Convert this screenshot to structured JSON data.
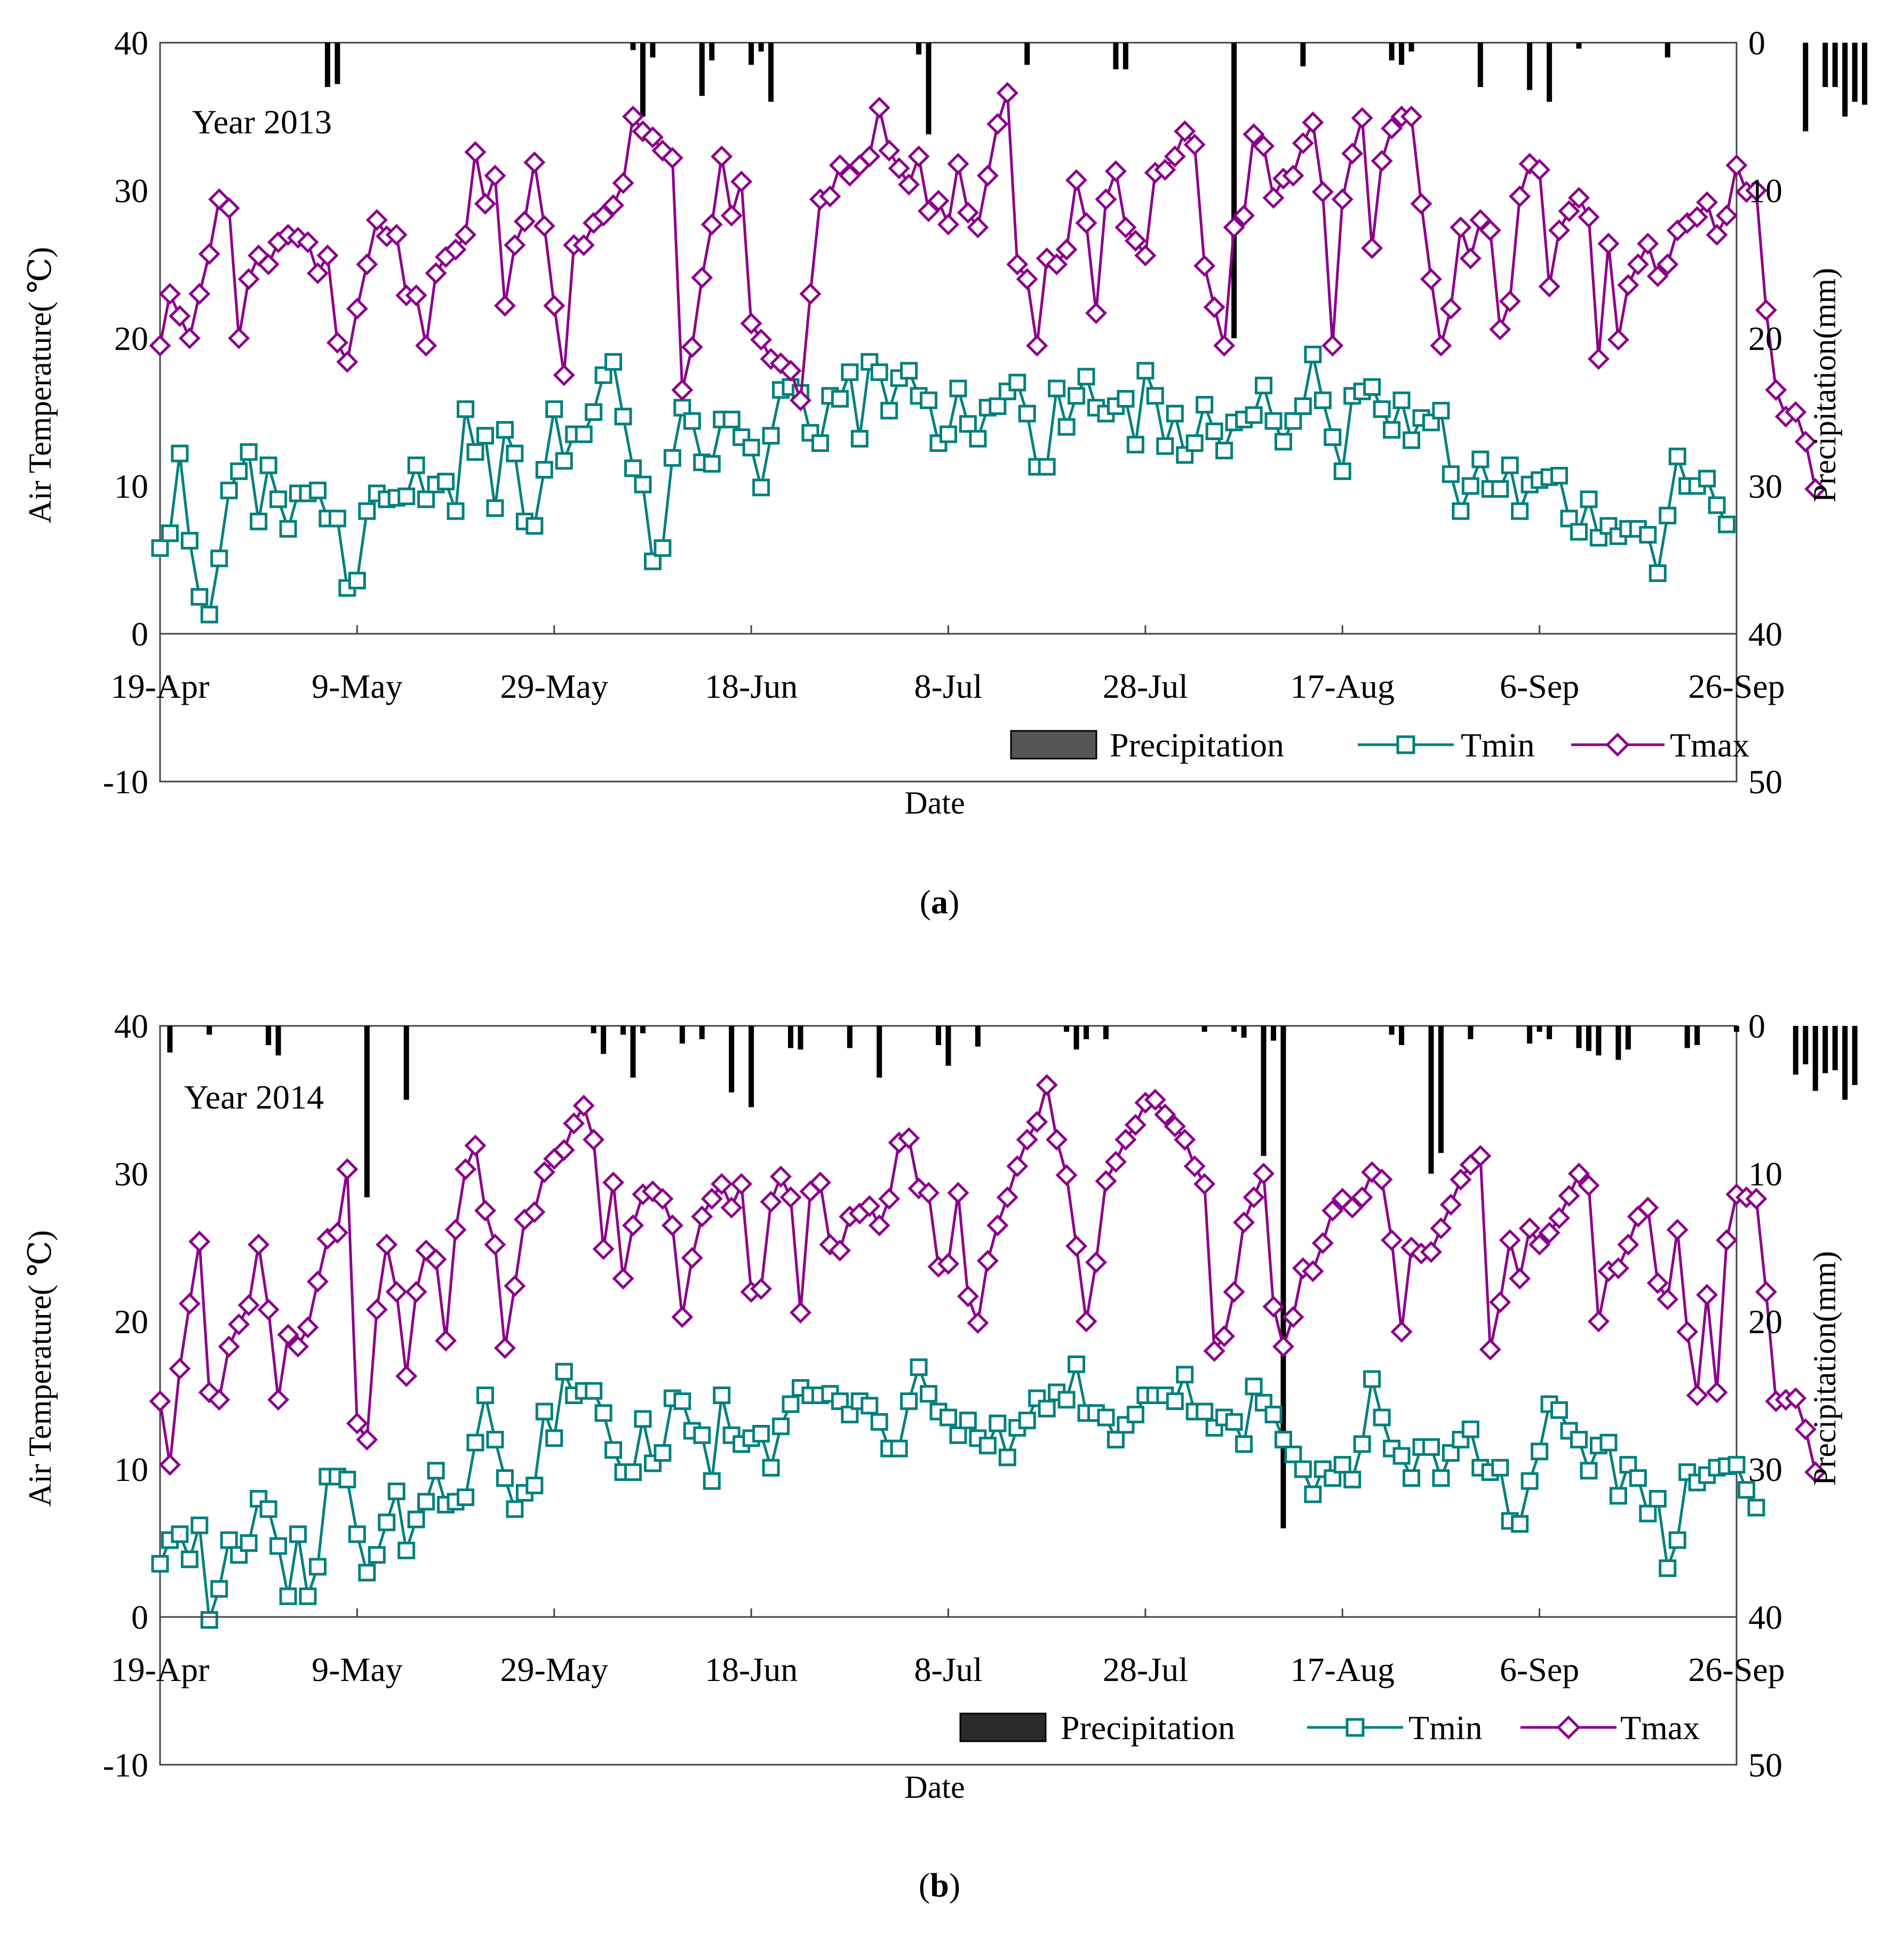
{
  "colors": {
    "tmin": "#00807c",
    "tmax": "#8b008b",
    "precip_a": "#000000",
    "precip_legend_a": "#555555",
    "precip_b": "#000000",
    "precip_legend_b": "#2a2a2a"
  },
  "chart_data": [
    {
      "type": "line",
      "panel": "(a)",
      "panel_letter": "a",
      "annotation": "Year 2013",
      "xlabel": "Date",
      "ylabel_left": "Air Temperature( ℃)",
      "ylabel_right": "Precipitation(mm)",
      "left_ylim": [
        -10,
        40
      ],
      "left_ticks": [
        "40",
        "30",
        "20",
        "10",
        "0",
        "-10"
      ],
      "right_ylim_inverted": [
        0,
        50
      ],
      "right_ticks": [
        "0",
        "10",
        "20",
        "30",
        "40",
        "50"
      ],
      "x_tick_labels": [
        "19-Apr",
        "9-May",
        "29-May",
        "18-Jun",
        "8-Jul",
        "28-Jul",
        "17-Aug",
        "6-Sep",
        "26-Sep"
      ],
      "x_tick_days": [
        0,
        20,
        40,
        60,
        80,
        100,
        120,
        140,
        160
      ],
      "legend": {
        "precipitation": "Precipitation",
        "tmin": "Tmin",
        "tmax": "Tmax"
      },
      "series": [
        {
          "name": "Tmin",
          "marker": "square",
          "values": [
            5.8,
            6.8,
            12.2,
            6.3,
            2.5,
            1.3,
            5.1,
            9.7,
            11.0,
            12.3,
            7.6,
            11.4,
            9.1,
            7.1,
            9.5,
            9.5,
            9.7,
            7.8,
            7.8,
            3.1,
            3.6,
            8.3,
            9.5,
            9.1,
            9.2,
            9.3,
            11.4,
            9.1,
            10.1,
            10.3,
            8.3,
            15.2,
            12.3,
            13.4,
            8.5,
            13.8,
            12.2,
            7.6,
            7.3,
            11.1,
            15.2,
            11.7,
            13.5,
            13.5,
            15.0,
            17.5,
            18.4,
            14.7,
            11.2,
            10.1,
            4.9,
            5.8,
            11.9,
            15.3,
            14.4,
            11.6,
            11.5,
            14.5,
            14.5,
            13.3,
            12.6,
            9.9,
            13.4,
            16.5,
            16.7,
            16.3,
            13.6,
            12.9,
            16.1,
            15.9,
            17.7,
            13.2,
            18.4,
            17.7,
            15.1,
            17.3,
            17.8,
            16.1,
            15.8,
            12.9,
            13.5,
            16.6,
            14.2,
            13.2,
            15.3,
            15.4,
            16.4,
            17.0,
            14.9,
            11.3,
            11.3,
            16.6,
            14.0,
            16.1,
            17.4,
            15.3,
            14.9,
            15.4,
            15.9,
            12.8,
            17.8,
            16.1,
            12.7,
            14.9,
            12.1,
            12.9,
            15.5,
            13.7,
            12.4,
            14.3,
            14.5,
            14.8,
            16.8,
            14.4,
            13.0,
            14.4,
            15.4,
            18.9,
            15.8,
            13.3,
            11.0,
            16.1,
            16.4,
            16.7,
            15.2,
            13.8,
            15.8,
            13.1,
            14.6,
            14.3,
            15.1,
            10.8,
            8.3,
            10.0,
            11.8,
            9.8,
            9.8,
            11.4,
            8.3,
            10.1,
            10.4,
            10.6,
            10.7,
            7.8,
            6.9,
            9.1,
            6.5,
            7.3,
            6.6,
            7.1,
            7.1,
            6.7,
            4.1,
            8.0,
            12.0,
            10.0,
            10.0,
            10.5,
            8.7,
            7.4
          ]
        },
        {
          "name": "Tmax",
          "marker": "diamond",
          "values": [
            19.5,
            23.0,
            21.5,
            20.0,
            23.0,
            25.7,
            29.4,
            28.8,
            20.0,
            24.0,
            25.6,
            25.0,
            26.5,
            27.0,
            26.8,
            26.5,
            24.4,
            25.6,
            19.7,
            18.4,
            22.0,
            25.0,
            28.0,
            26.9,
            27.0,
            22.9,
            22.9,
            19.5,
            24.4,
            25.5,
            26.0,
            27.0,
            32.6,
            29.1,
            31.0,
            22.2,
            26.3,
            27.9,
            31.9,
            27.6,
            22.2,
            17.5,
            26.3,
            26.3,
            27.8,
            28.3,
            29.0,
            30.5,
            35.0,
            34.0,
            33.6,
            32.7,
            32.2,
            16.5,
            19.4,
            24.1,
            27.7,
            32.3,
            28.3,
            30.6,
            21.0,
            19.9,
            18.6,
            18.3,
            17.8,
            15.8,
            23.0,
            29.4,
            29.6,
            31.7,
            31.0,
            31.7,
            32.3,
            35.6,
            32.7,
            31.5,
            30.4,
            32.3,
            28.6,
            29.3,
            27.7,
            31.8,
            28.5,
            27.5,
            31.0,
            34.5,
            36.6,
            25.0,
            24.0,
            19.5,
            25.4,
            25.0,
            26.0,
            30.7,
            27.8,
            21.7,
            29.4,
            31.3,
            27.5,
            26.6,
            25.6,
            31.2,
            31.4,
            32.3,
            34.0,
            33.1,
            24.9,
            22.1,
            19.5,
            27.5,
            28.3,
            33.8,
            33.0,
            29.5,
            30.8,
            31.0,
            33.2,
            34.6,
            29.9,
            19.5,
            29.4,
            32.5,
            34.9,
            26.1,
            32.0,
            34.2,
            35.0,
            35.0,
            29.1,
            24.0,
            19.5,
            22.0,
            27.5,
            25.4,
            28.0,
            27.3,
            20.6,
            22.5,
            29.6,
            31.8,
            31.4,
            23.5,
            27.3,
            28.6,
            29.5,
            28.2,
            18.6,
            26.4,
            19.9,
            23.6,
            25.0,
            26.4,
            24.2,
            25.0,
            27.3,
            27.8,
            28.2,
            29.2,
            27.0,
            28.3,
            31.7,
            29.9,
            30.0,
            21.9,
            16.5,
            14.7,
            15.0,
            13.0,
            9.8
          ]
        },
        {
          "name": "Precipitation",
          "unit": "mm",
          "axis": "right",
          "days": [
            17,
            18,
            48,
            49,
            50,
            55,
            56,
            60,
            61,
            62,
            77,
            78,
            88,
            97,
            98,
            109,
            116,
            125,
            126,
            127,
            134,
            139,
            141,
            144,
            153,
            167,
            169,
            170,
            171,
            172,
            173
          ],
          "values": [
            3.0,
            2.8,
            0.5,
            5.0,
            1.0,
            3.6,
            1.2,
            1.5,
            0.6,
            4.0,
            0.8,
            6.2,
            1.5,
            1.8,
            1.8,
            20.0,
            1.6,
            1.2,
            1.5,
            0.6,
            3.0,
            3.2,
            4.0,
            0.4,
            1.0,
            6.0,
            3.0,
            3.0,
            5.0,
            4.0,
            4.2
          ]
        }
      ]
    },
    {
      "type": "line",
      "panel": "(b)",
      "panel_letter": "b",
      "annotation": "Year 2014",
      "xlabel": "Date",
      "ylabel_left": "Air Temperature( ℃)",
      "ylabel_right": "Precipitation(mm)",
      "left_ylim": [
        -10,
        40
      ],
      "left_ticks": [
        "40",
        "30",
        "20",
        "10",
        "0",
        "-10"
      ],
      "right_ylim_inverted": [
        0,
        50
      ],
      "right_ticks": [
        "0",
        "10",
        "20",
        "30",
        "40",
        "50"
      ],
      "x_tick_labels": [
        "19-Apr",
        "9-May",
        "29-May",
        "18-Jun",
        "8-Jul",
        "28-Jul",
        "17-Aug",
        "6-Sep",
        "26-Sep"
      ],
      "x_tick_days": [
        0,
        20,
        40,
        60,
        80,
        100,
        120,
        140,
        160
      ],
      "legend": {
        "precipitation": "Precipitation",
        "tmin": "Tmin",
        "tmax": "Tmax"
      },
      "series": [
        {
          "name": "Tmin",
          "marker": "square",
          "values": [
            3.6,
            5.2,
            5.6,
            3.9,
            6.2,
            -0.2,
            1.9,
            5.2,
            4.2,
            5.0,
            8.0,
            7.3,
            4.8,
            1.4,
            5.6,
            1.4,
            3.4,
            9.5,
            9.5,
            9.3,
            5.6,
            3.0,
            4.2,
            6.4,
            8.5,
            4.5,
            6.6,
            7.8,
            9.9,
            7.6,
            7.8,
            8.1,
            11.8,
            15.0,
            12.0,
            9.4,
            7.3,
            8.4,
            8.9,
            13.9,
            12.1,
            16.6,
            15.0,
            15.3,
            15.3,
            13.8,
            11.3,
            9.8,
            9.8,
            13.4,
            10.4,
            11.1,
            14.8,
            14.6,
            12.6,
            12.3,
            9.2,
            15.0,
            12.3,
            11.7,
            12.1,
            12.4,
            10.1,
            12.9,
            14.4,
            15.5,
            15.0,
            15.0,
            15.1,
            14.6,
            13.7,
            14.6,
            14.3,
            13.2,
            11.4,
            11.4,
            14.6,
            16.9,
            15.1,
            13.9,
            13.5,
            12.3,
            13.3,
            12.1,
            11.6,
            13.1,
            10.8,
            12.8,
            13.3,
            14.8,
            14.1,
            15.2,
            14.7,
            17.1,
            13.8,
            13.8,
            13.5,
            12.0,
            13.0,
            13.7,
            15.0,
            15.0,
            15.0,
            14.6,
            16.4,
            13.9,
            13.9,
            12.8,
            13.5,
            13.2,
            11.7,
            15.6,
            14.5,
            13.7,
            12.0,
            11.0,
            10.0,
            8.3,
            10.0,
            9.4,
            10.3,
            9.3,
            11.7,
            16.1,
            13.5,
            11.4,
            10.9,
            9.4,
            11.5,
            11.5,
            9.4,
            11.1,
            12.0,
            12.7,
            10.1,
            9.8,
            10.1,
            6.5,
            6.3,
            9.2,
            11.2,
            14.4,
            14.0,
            12.6,
            12.0,
            9.9,
            11.6,
            11.8,
            8.2,
            10.3,
            9.4,
            7.0,
            8.0,
            3.3,
            5.2,
            9.8,
            9.1,
            9.6,
            10.1,
            10.2,
            10.3,
            8.6,
            7.4
          ]
        },
        {
          "name": "Tmax",
          "marker": "diamond",
          "values": [
            14.6,
            10.3,
            16.8,
            21.2,
            25.4,
            15.2,
            14.7,
            18.3,
            19.8,
            21.1,
            25.2,
            20.8,
            14.7,
            19.1,
            18.3,
            19.6,
            22.7,
            25.6,
            26.0,
            30.3,
            13.1,
            12.0,
            20.8,
            25.2,
            22.0,
            16.3,
            22.0,
            24.8,
            24.2,
            18.7,
            26.2,
            30.3,
            31.9,
            27.5,
            25.2,
            18.2,
            22.4,
            26.9,
            27.4,
            30.1,
            31.0,
            31.6,
            33.4,
            34.6,
            32.3,
            24.9,
            29.4,
            22.9,
            26.5,
            28.6,
            28.8,
            28.3,
            26.5,
            20.3,
            24.3,
            27.1,
            28.3,
            29.3,
            27.7,
            29.3,
            22.0,
            22.2,
            28.1,
            29.8,
            28.4,
            20.6,
            28.8,
            29.4,
            25.2,
            24.8,
            27.1,
            27.3,
            27.8,
            26.5,
            28.3,
            32.1,
            32.4,
            29.0,
            28.7,
            23.7,
            23.9,
            28.7,
            21.7,
            19.9,
            24.1,
            26.5,
            28.4,
            30.5,
            32.3,
            33.5,
            36.0,
            32.3,
            29.9,
            25.1,
            20.0,
            24.0,
            29.5,
            30.8,
            32.3,
            33.3,
            34.8,
            35.0,
            34.0,
            33.2,
            32.3,
            30.5,
            29.3,
            18.0,
            19.0,
            22.0,
            26.7,
            28.4,
            30.0,
            21.0,
            18.3,
            20.3,
            23.6,
            23.4,
            25.3,
            27.5,
            28.3,
            27.7,
            28.4,
            30.1,
            29.6,
            25.5,
            19.3,
            25.0,
            24.6,
            24.7,
            26.3,
            27.9,
            29.6,
            30.6,
            31.2,
            18.1,
            21.3,
            25.5,
            22.9,
            26.3,
            25.2,
            26.0,
            27.0,
            28.5,
            30.0,
            29.2,
            20.0,
            23.4,
            23.6,
            25.2,
            27.1,
            27.7,
            22.6,
            21.5,
            26.2,
            19.3,
            15.0,
            21.8,
            15.2,
            25.5,
            28.6,
            28.4,
            28.3,
            22.0,
            14.6,
            14.7,
            14.8,
            12.7,
            9.8
          ]
        },
        {
          "name": "Precipitation",
          "unit": "mm",
          "axis": "right",
          "days": [
            1,
            5,
            11,
            12,
            21,
            25,
            44,
            45,
            47,
            48,
            49,
            53,
            55,
            58,
            60,
            64,
            65,
            70,
            73,
            79,
            80,
            83,
            92,
            93,
            94,
            96,
            106,
            109,
            110,
            112,
            113,
            114,
            114,
            125,
            126,
            129,
            130,
            133,
            133,
            139,
            140,
            141,
            144,
            145,
            146,
            148,
            149,
            155,
            156,
            160,
            166,
            167,
            168,
            169,
            170,
            171,
            172
          ],
          "values": [
            1.8,
            0.6,
            1.3,
            2.0,
            11.6,
            5.0,
            0.5,
            1.9,
            0.6,
            3.5,
            0.5,
            1.2,
            0.9,
            4.5,
            5.5,
            1.5,
            1.6,
            1.5,
            3.5,
            1.3,
            2.7,
            1.4,
            0.4,
            1.6,
            0.9,
            0.9,
            0.4,
            0.4,
            0.8,
            8.8,
            1.0,
            0.8,
            34.0,
            0.6,
            1.3,
            10.0,
            8.6,
            0.4,
            0.9,
            1.2,
            0.4,
            0.9,
            1.5,
            1.7,
            2.0,
            2.3,
            1.6,
            1.5,
            1.3,
            0.4,
            3.3,
            2.6,
            4.4,
            3.2,
            3.0,
            5.0,
            4.0
          ]
        }
      ]
    }
  ]
}
